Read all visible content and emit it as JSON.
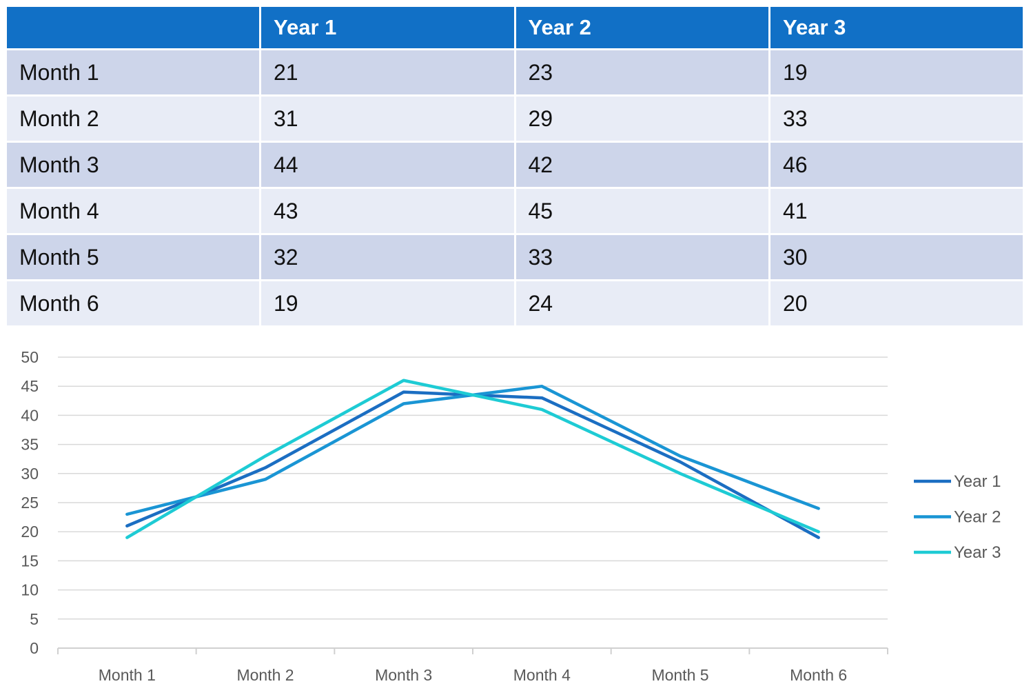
{
  "table": {
    "corner": "",
    "columns": [
      "Year 1",
      "Year 2",
      "Year 3"
    ],
    "rows": [
      {
        "label": "Month 1",
        "values": [
          "21",
          "23",
          "19"
        ]
      },
      {
        "label": "Month 2",
        "values": [
          "31",
          "29",
          "33"
        ]
      },
      {
        "label": "Month 3",
        "values": [
          "44",
          "42",
          "46"
        ]
      },
      {
        "label": "Month 4",
        "values": [
          "43",
          "45",
          "41"
        ]
      },
      {
        "label": "Month 5",
        "values": [
          "32",
          "33",
          "30"
        ]
      },
      {
        "label": "Month 6",
        "values": [
          "19",
          "24",
          "20"
        ]
      }
    ]
  },
  "chart_data": {
    "type": "line",
    "title": "",
    "xlabel": "",
    "ylabel": "",
    "categories": [
      "Month 1",
      "Month 2",
      "Month 3",
      "Month 4",
      "Month 5",
      "Month 6"
    ],
    "ylim": [
      0,
      50
    ],
    "yticks": [
      "0",
      "5",
      "10",
      "15",
      "20",
      "25",
      "30",
      "35",
      "40",
      "45",
      "50"
    ],
    "grid": "horizontal",
    "legend_position": "right",
    "series": [
      {
        "name": "Year 1",
        "values": [
          21,
          31,
          44,
          43,
          32,
          19
        ],
        "color": "#1b6ec2"
      },
      {
        "name": "Year 2",
        "values": [
          23,
          29,
          42,
          45,
          33,
          24
        ],
        "color": "#1a95d4"
      },
      {
        "name": "Year 3",
        "values": [
          19,
          33,
          46,
          41,
          30,
          20
        ],
        "color": "#1ecbd4"
      }
    ]
  }
}
